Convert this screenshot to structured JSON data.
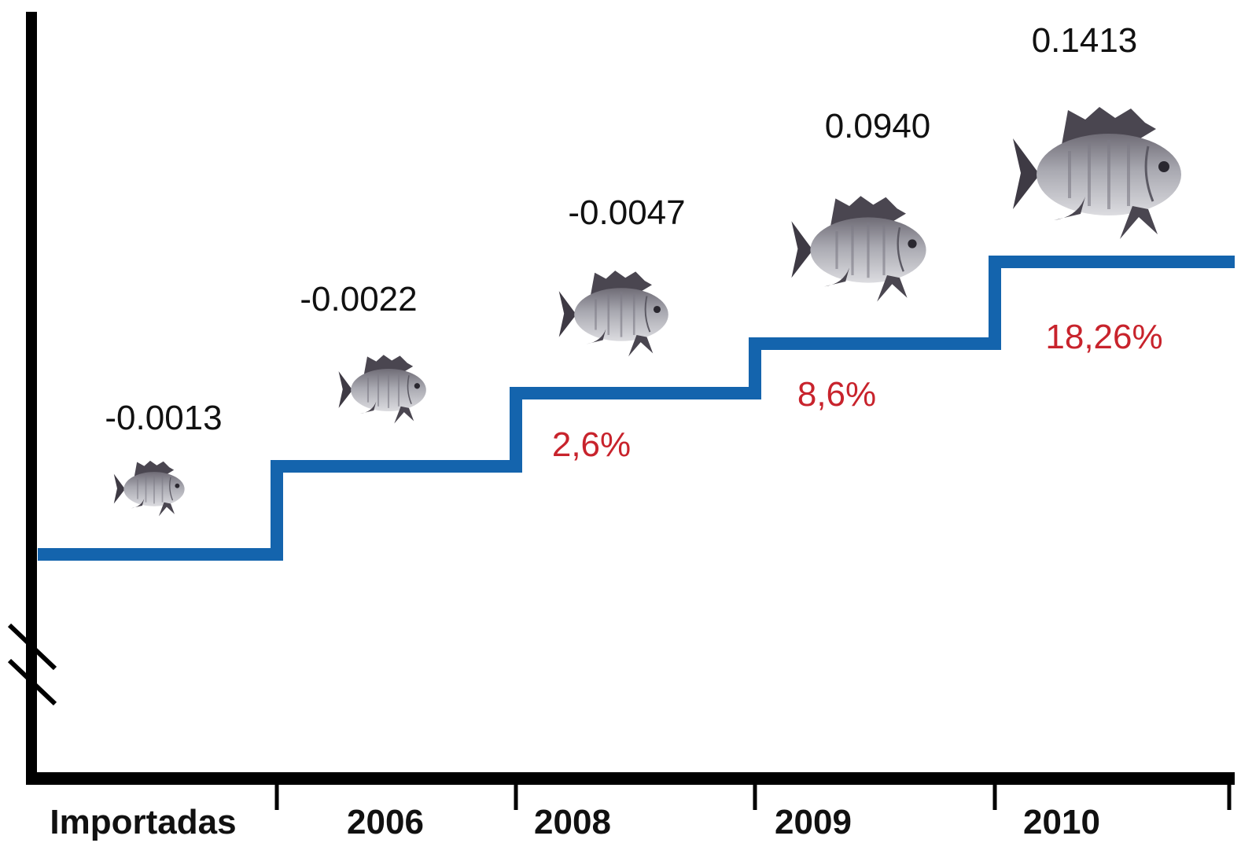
{
  "chart_data": {
    "type": "step",
    "categories": [
      "Importadas",
      "2006",
      "2008",
      "2009",
      "2010"
    ],
    "values": [
      "-0.0013",
      "-0.0022",
      "-0.0047",
      "0.0940",
      "0.1413"
    ],
    "gains": [
      "",
      "",
      "2,6%",
      "8,6%",
      "18,26%"
    ],
    "colors": {
      "axis": "#000000",
      "step_line": "#1464ad",
      "value_text": "#111111",
      "gain_text": "#c8232c",
      "fish_body": "#9a9aa2",
      "fish_fin": "#4a4650"
    },
    "icons": [
      "tilapia-fish-icon"
    ]
  }
}
